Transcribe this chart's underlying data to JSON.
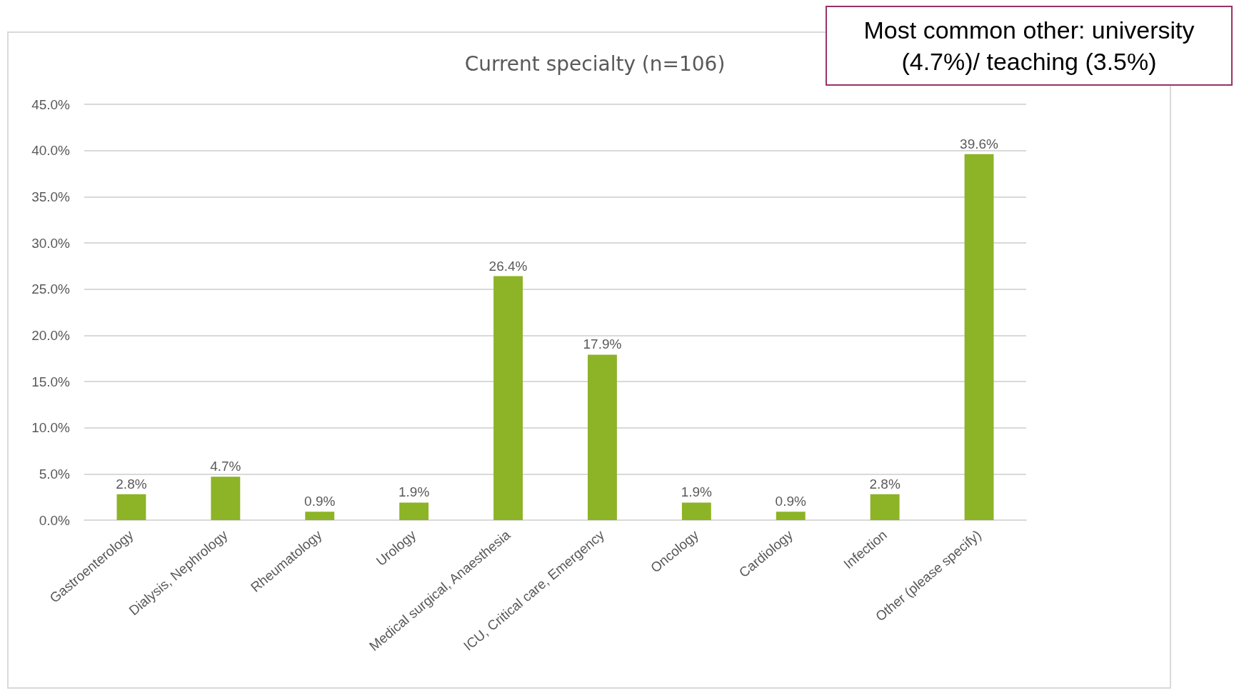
{
  "chart_data": {
    "type": "bar",
    "title": "Current specialty (n=106)",
    "categories": [
      "Gastroenterology",
      "Dialysis, Nephrology",
      "Rheumatology",
      "Urology",
      "Medical surgical, Anaesthesia",
      "ICU, Critical care, Emergency",
      "Oncology",
      "Cardiology",
      "Infection",
      "Other (please specify)"
    ],
    "values": [
      2.8,
      4.7,
      0.9,
      1.9,
      26.4,
      17.9,
      1.9,
      0.9,
      2.8,
      39.6
    ],
    "value_labels": [
      "2.8%",
      "4.7%",
      "0.9%",
      "1.9%",
      "26.4%",
      "17.9%",
      "1.9%",
      "0.9%",
      "2.8%",
      "39.6%"
    ],
    "color": "#8db327",
    "ylim": [
      0,
      45
    ],
    "yticks": [
      {
        "value": 0,
        "label": "0.0%"
      },
      {
        "value": 5,
        "label": "5.0%"
      },
      {
        "value": 10,
        "label": "10.0%"
      },
      {
        "value": 15,
        "label": "15.0%"
      },
      {
        "value": 20,
        "label": "20.0%"
      },
      {
        "value": 25,
        "label": "25.0%"
      },
      {
        "value": 30,
        "label": "30.0%"
      },
      {
        "value": 35,
        "label": "35.0%"
      },
      {
        "value": 40,
        "label": "40.0%"
      },
      {
        "value": 45,
        "label": "45.0%"
      }
    ],
    "grid": "y",
    "annotations": [
      "Most common other: university (4.7%)/ teaching (3.5%)"
    ]
  }
}
